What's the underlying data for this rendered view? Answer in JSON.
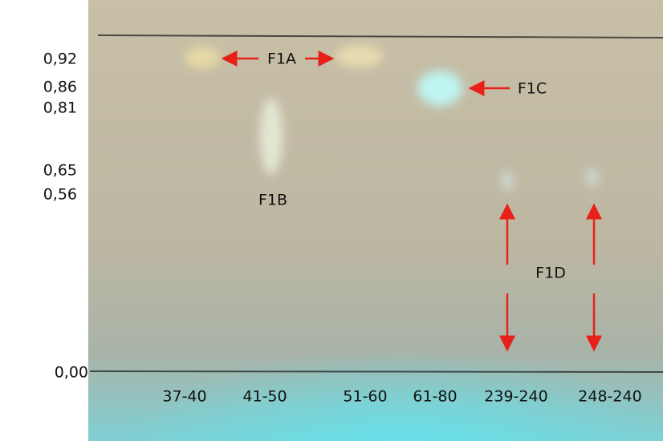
{
  "rf_labels": [
    "0,92",
    "0,86",
    "0,81",
    "0,65",
    "0,56",
    "0,00"
  ],
  "fraction_labels": [
    "37-40",
    "41-50",
    "51-60",
    "61-80",
    "239-240",
    "248-240"
  ],
  "spot_labels": [
    "F1A",
    "F1B",
    "F1C",
    "F1D"
  ]
}
